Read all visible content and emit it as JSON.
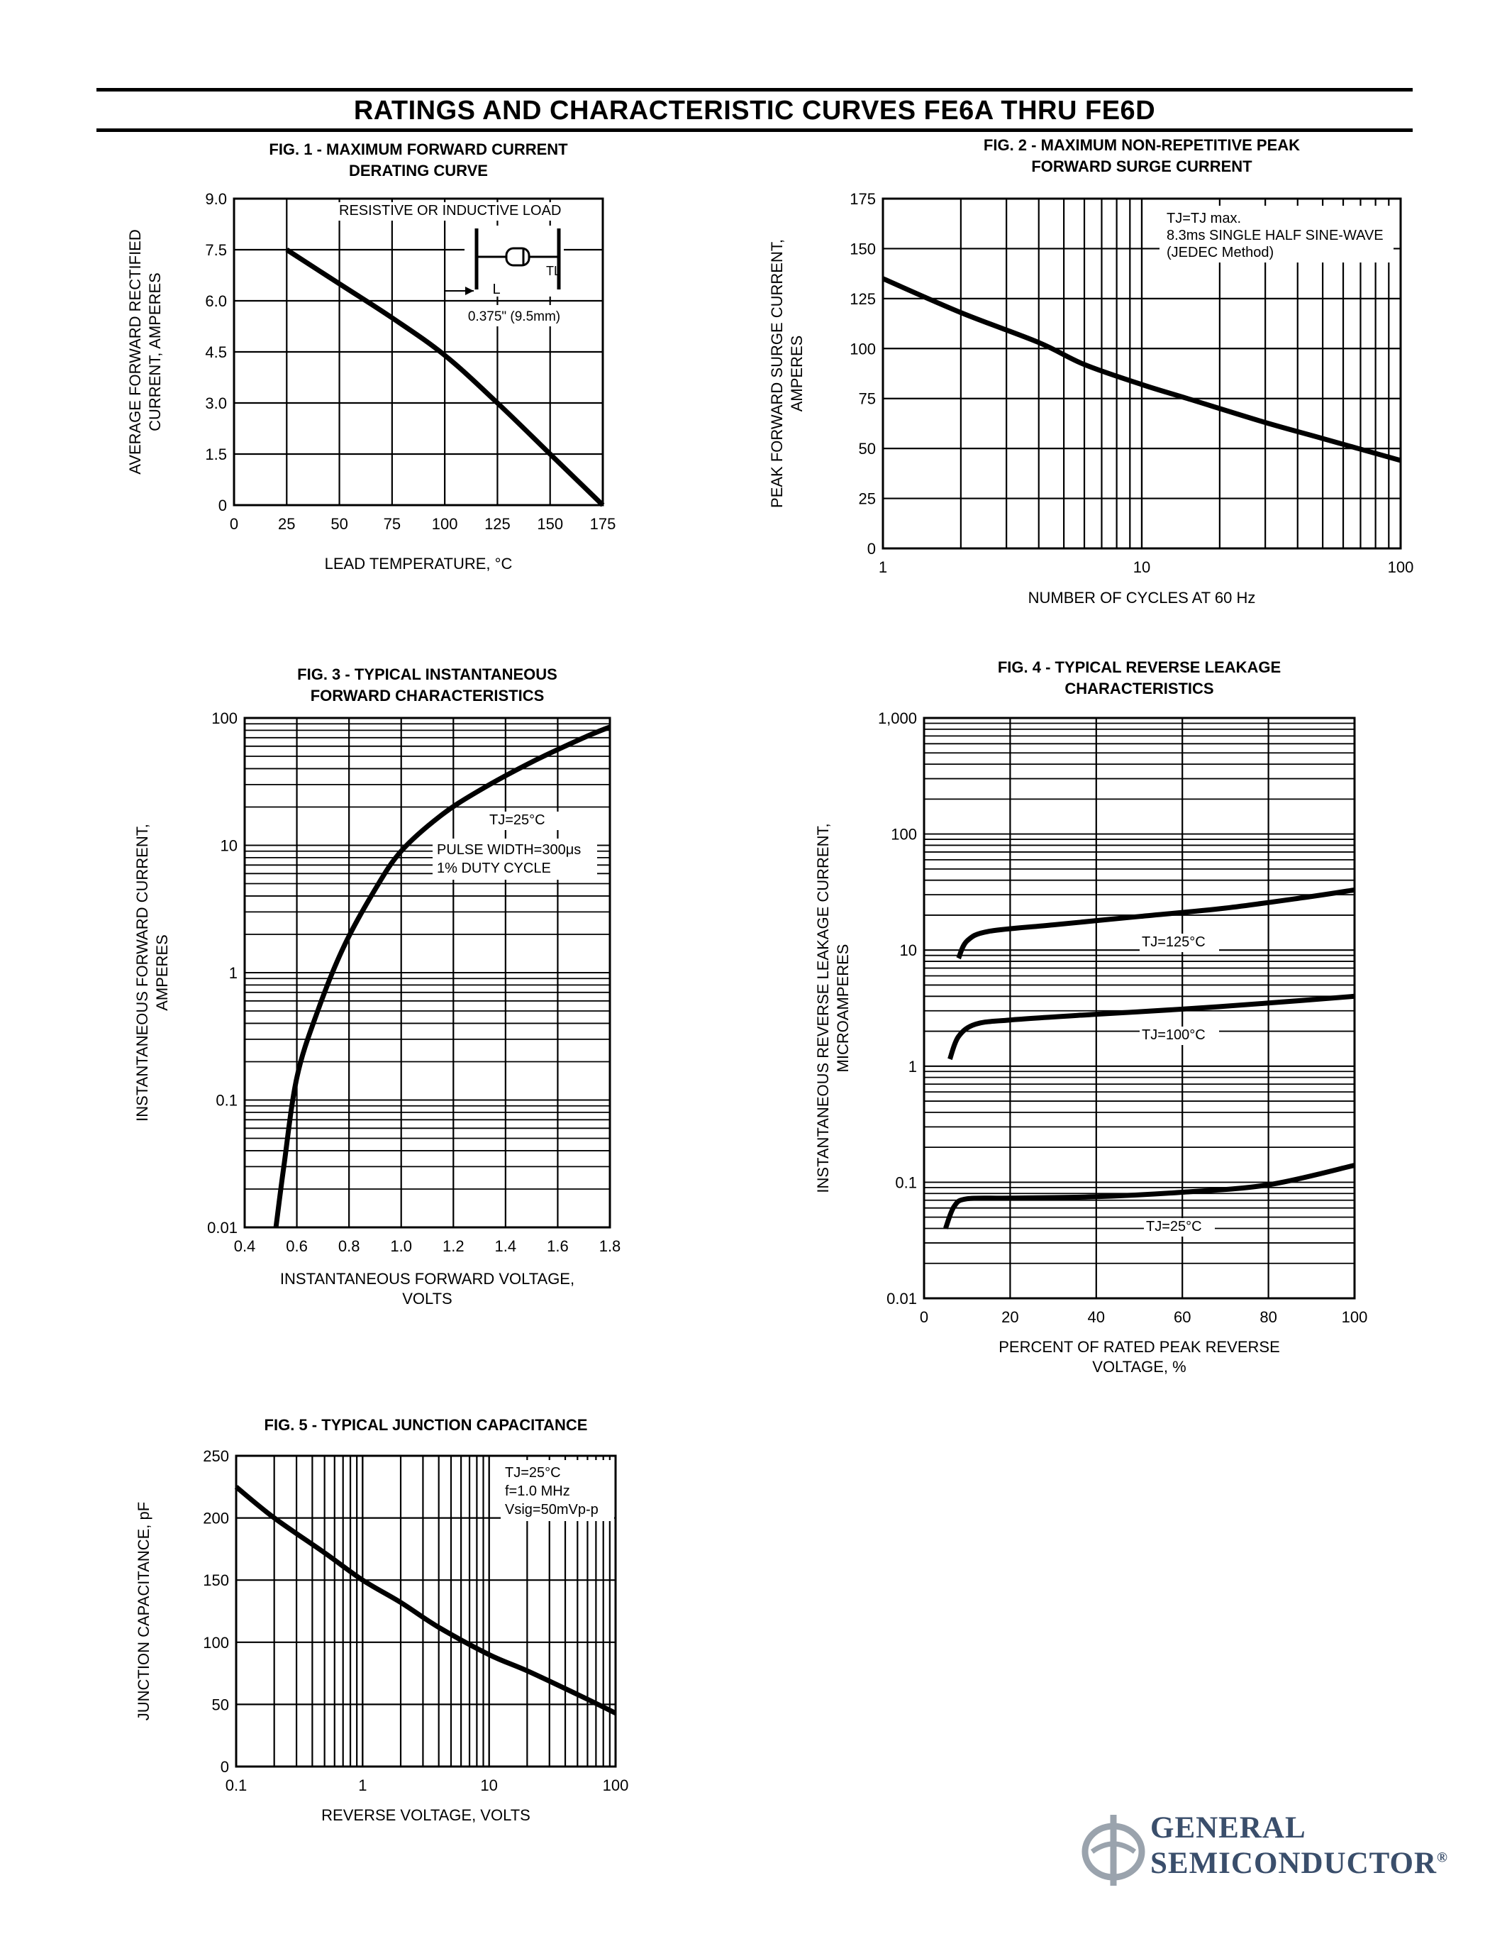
{
  "page": {
    "title": "RATINGS AND CHARACTERISTIC CURVES FE6A THRU FE6D"
  },
  "logo": {
    "line1": "GENERAL",
    "line2": "SEMICONDUCTOR",
    "reg": "®",
    "color": "#3a4e6b"
  },
  "chart_data": [
    {
      "id": "fig1",
      "type": "line",
      "title": [
        "FIG. 1 - MAXIMUM FORWARD CURRENT",
        "DERATING CURVE"
      ],
      "xlabel": [
        "LEAD TEMPERATURE, °C"
      ],
      "ylabel": [
        "AVERAGE FORWARD RECTIFIED",
        "CURRENT, AMPERES"
      ],
      "xscale": "linear",
      "yscale": "linear",
      "xlim": [
        0,
        175
      ],
      "ylim": [
        0,
        9.0
      ],
      "xticks": [
        0,
        25,
        50,
        75,
        100,
        125,
        150,
        175
      ],
      "xtick_labels": [
        "0",
        "25",
        "50",
        "75",
        "100",
        "125",
        "150",
        "175"
      ],
      "yticks": [
        0,
        1.5,
        3.0,
        4.5,
        6.0,
        7.5,
        9.0
      ],
      "ytick_labels": [
        "0",
        "1.5",
        "3.0",
        "4.5",
        "6.0",
        "7.5",
        "9.0"
      ],
      "grid": true,
      "series": [
        {
          "x": [
            25,
            50,
            75,
            100,
            125,
            150,
            175
          ],
          "y": [
            7.5,
            6.5,
            5.5,
            4.4,
            3.0,
            1.5,
            0
          ]
        }
      ],
      "annotations": [
        "RESISTIVE OR INDUCTIVE LOAD",
        "TL",
        "L",
        "0.375\" (9.5mm)"
      ]
    },
    {
      "id": "fig2",
      "type": "line",
      "title": [
        "FIG. 2 - MAXIMUM NON-REPETITIVE PEAK",
        "FORWARD SURGE CURRENT"
      ],
      "xlabel": [
        "NUMBER OF CYCLES AT 60 Hz"
      ],
      "ylabel": [
        "PEAK FORWARD SURGE CURRENT,",
        "AMPERES"
      ],
      "xscale": "log",
      "yscale": "linear",
      "xlim": [
        1,
        100
      ],
      "ylim": [
        0,
        175
      ],
      "xticks": [
        1,
        10,
        100
      ],
      "xtick_labels": [
        "1",
        "10",
        "100"
      ],
      "yticks": [
        0,
        25,
        50,
        75,
        100,
        125,
        150,
        175
      ],
      "ytick_labels": [
        "0",
        "25",
        "50",
        "75",
        "100",
        "125",
        "150",
        "175"
      ],
      "grid": true,
      "series": [
        {
          "x": [
            1,
            2,
            4,
            6,
            10,
            15,
            30,
            50,
            100
          ],
          "y": [
            135,
            118,
            103,
            92,
            82,
            75,
            63,
            55,
            44
          ]
        }
      ],
      "annotations": [
        "TJ=TJ max.",
        "8.3ms SINGLE HALF SINE-WAVE",
        "(JEDEC Method)"
      ]
    },
    {
      "id": "fig3",
      "type": "line",
      "title": [
        "FIG. 3 - TYPICAL INSTANTANEOUS",
        "FORWARD CHARACTERISTICS"
      ],
      "xlabel": [
        "INSTANTANEOUS FORWARD VOLTAGE,",
        "VOLTS"
      ],
      "ylabel": [
        "INSTANTANEOUS FORWARD CURRENT,",
        "AMPERES"
      ],
      "xscale": "linear",
      "yscale": "log",
      "xlim": [
        0.4,
        1.8
      ],
      "ylim": [
        0.01,
        100
      ],
      "xticks": [
        0.4,
        0.6,
        0.8,
        1.0,
        1.2,
        1.4,
        1.6,
        1.8
      ],
      "xtick_labels": [
        "0.4",
        "0.6",
        "0.8",
        "1.0",
        "1.2",
        "1.4",
        "1.6",
        "1.8"
      ],
      "yticks": [
        0.01,
        0.1,
        1,
        10,
        100
      ],
      "ytick_labels": [
        "0.01",
        "0.1",
        "1",
        "10",
        "100"
      ],
      "grid": true,
      "series": [
        {
          "x": [
            0.52,
            0.55,
            0.6,
            0.68,
            0.78,
            0.9,
            1.0,
            1.15,
            1.3,
            1.5,
            1.7,
            1.8
          ],
          "y": [
            0.01,
            0.03,
            0.15,
            0.5,
            1.6,
            4.5,
            9,
            17,
            27,
            45,
            70,
            85
          ]
        }
      ],
      "annotations": [
        "TJ=25°C",
        "PULSE WIDTH=300μs",
        "1% DUTY CYCLE"
      ]
    },
    {
      "id": "fig4",
      "type": "line",
      "title": [
        "FIG. 4 - TYPICAL REVERSE  LEAKAGE",
        "CHARACTERISTICS"
      ],
      "xlabel": [
        "PERCENT OF RATED PEAK REVERSE",
        "VOLTAGE, %"
      ],
      "ylabel": [
        "INSTANTANEOUS REVERSE LEAKAGE CURRENT,",
        "MICROAMPERES"
      ],
      "xscale": "linear",
      "yscale": "log",
      "xlim": [
        0,
        100
      ],
      "ylim": [
        0.01,
        1000
      ],
      "xticks": [
        0,
        20,
        40,
        60,
        80,
        100
      ],
      "xtick_labels": [
        "0",
        "20",
        "40",
        "60",
        "80",
        "100"
      ],
      "yticks": [
        0.01,
        0.1,
        1,
        10,
        100,
        1000
      ],
      "ytick_labels": [
        "0.01",
        "0.1",
        "1",
        "10",
        "100",
        "1,000"
      ],
      "grid": true,
      "series": [
        {
          "name": "TJ=125°C",
          "x": [
            8,
            10,
            15,
            30,
            50,
            70,
            90,
            100
          ],
          "y": [
            8.5,
            12,
            14.5,
            16.5,
            19.5,
            23,
            29,
            33
          ]
        },
        {
          "name": "TJ=100°C",
          "x": [
            6,
            8,
            12,
            20,
            40,
            60,
            80,
            100
          ],
          "y": [
            1.15,
            1.8,
            2.3,
            2.5,
            2.8,
            3.1,
            3.5,
            4.0
          ]
        },
        {
          "name": "TJ=25°C",
          "x": [
            5,
            7,
            10,
            20,
            40,
            60,
            80,
            100
          ],
          "y": [
            0.04,
            0.062,
            0.072,
            0.073,
            0.075,
            0.082,
            0.095,
            0.14
          ]
        }
      ],
      "annotations": [
        "TJ=125°C",
        "TJ=100°C",
        "TJ=25°C"
      ]
    },
    {
      "id": "fig5",
      "type": "line",
      "title": [
        "FIG. 5 - TYPICAL JUNCTION CAPACITANCE"
      ],
      "xlabel": [
        "REVERSE VOLTAGE, VOLTS"
      ],
      "ylabel": [
        "JUNCTION CAPACITANCE, pF"
      ],
      "xscale": "log",
      "yscale": "linear",
      "xlim": [
        0.1,
        100
      ],
      "ylim": [
        0,
        250
      ],
      "xticks": [
        0.1,
        1,
        10,
        100
      ],
      "xtick_labels": [
        "0.1",
        "1",
        "10",
        "100"
      ],
      "yticks": [
        0,
        50,
        100,
        150,
        200,
        250
      ],
      "ytick_labels": [
        "0",
        "50",
        "100",
        "150",
        "200",
        "250"
      ],
      "grid": true,
      "series": [
        {
          "x": [
            0.1,
            0.2,
            0.5,
            1,
            2,
            4,
            10,
            20,
            50,
            100
          ],
          "y": [
            225,
            200,
            172,
            150,
            132,
            112,
            90,
            77,
            58,
            43
          ]
        }
      ],
      "annotations": [
        "TJ=25°C",
        "f=1.0 MHz",
        "Vsig=50mVp-p"
      ]
    }
  ]
}
